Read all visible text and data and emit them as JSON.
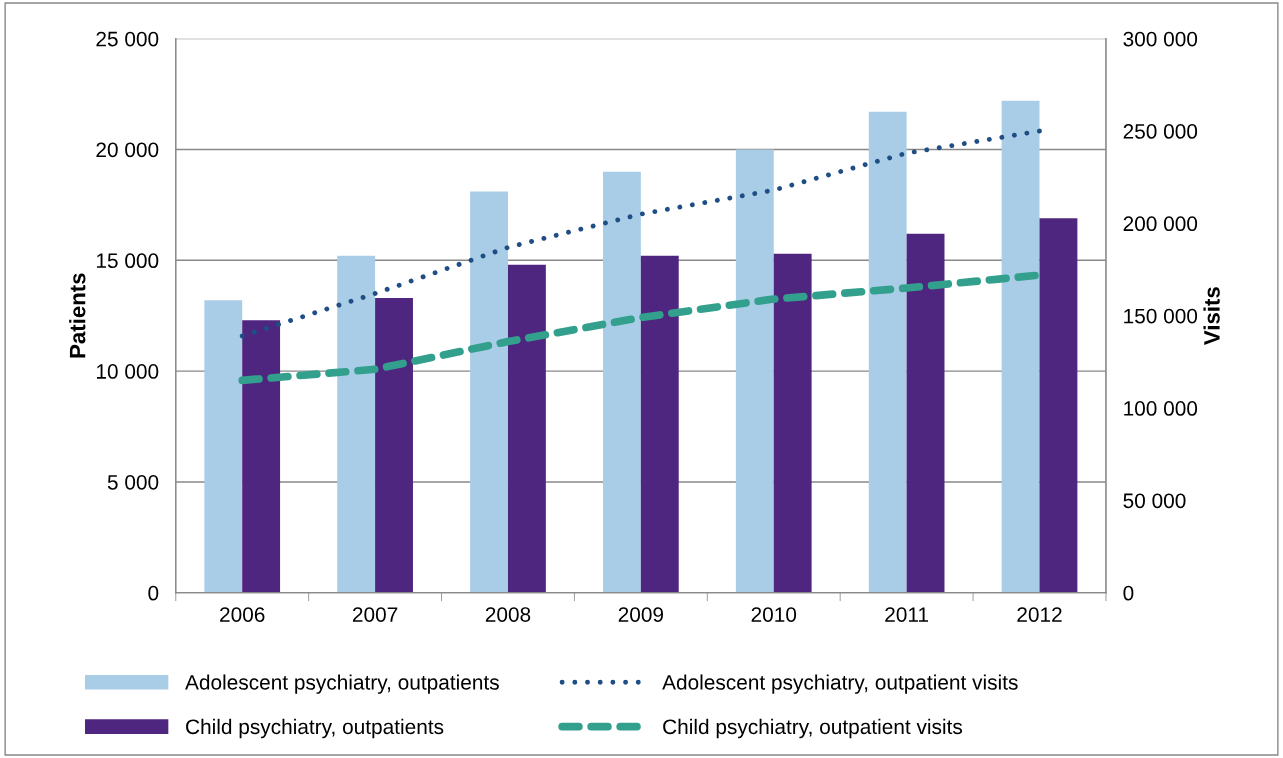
{
  "chart_data": {
    "type": "bar",
    "ylabel": "Patients",
    "y2label": "Visits",
    "categories": [
      "2006",
      "2007",
      "2008",
      "2009",
      "2010",
      "2011",
      "2012"
    ],
    "series": [
      {
        "name": "Adolescent psychiatry, outpatients",
        "color": "#a9cde6",
        "values": [
          13200,
          15200,
          18100,
          19000,
          20000,
          21700,
          22200
        ]
      },
      {
        "name": "Child psychiatry, outpatients",
        "color": "#4f267f",
        "values": [
          12300,
          13300,
          14800,
          15200,
          15300,
          16200,
          16900
        ]
      },
      {
        "name": "Adolescent psychiatry, outpatient visits",
        "type": "line",
        "axis": "y2",
        "line_style": "dotted",
        "color": "#1f4e85",
        "values": [
          139000,
          162000,
          187000,
          205000,
          218000,
          238000,
          250000
        ]
      },
      {
        "name": "Child psychiatry, outpatient visits",
        "type": "line",
        "axis": "y2",
        "line_style": "dashed",
        "color": "#33a08e",
        "values": [
          115000,
          121000,
          136000,
          149000,
          159000,
          165000,
          172000
        ]
      }
    ],
    "ylim": [
      0,
      25000
    ],
    "yticks": [
      {
        "value": 0,
        "label": "0"
      },
      {
        "value": 5000,
        "label": "5 000"
      },
      {
        "value": 10000,
        "label": "10 000"
      },
      {
        "value": 15000,
        "label": "15 000"
      },
      {
        "value": 20000,
        "label": "20 000"
      },
      {
        "value": 25000,
        "label": "25 000"
      }
    ],
    "y2lim": [
      0,
      300000
    ],
    "y2ticks": [
      {
        "value": 0,
        "label": "0"
      },
      {
        "value": 50000,
        "label": "50 000"
      },
      {
        "value": 100000,
        "label": "100 000"
      },
      {
        "value": 150000,
        "label": "150 000"
      },
      {
        "value": 200000,
        "label": "200 000"
      },
      {
        "value": 250000,
        "label": "250 000"
      },
      {
        "value": 300000,
        "label": "300 000"
      }
    ],
    "grid": "y",
    "legend": "bottom"
  }
}
